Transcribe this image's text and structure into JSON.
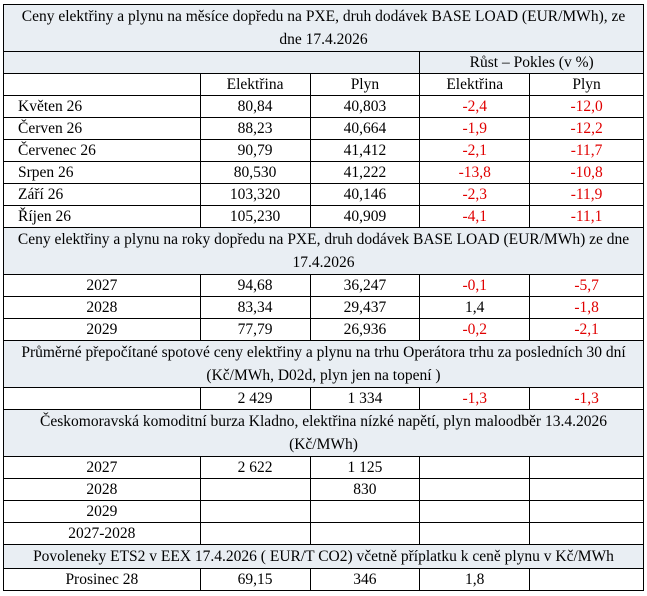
{
  "sections": [
    {
      "title": "Ceny elektřiny a plynu na měsíce dopředu na PXE, druh dodávek BASE LOAD (EUR/MWh), ze dne 17.4.2026",
      "group_header": "Růst – Pokles (v %)",
      "column_headers": [
        "Elektřina",
        "Plyn",
        "Elektřina",
        "Plyn"
      ],
      "rows": [
        [
          "Květen 26",
          "80,84",
          "40,803",
          "-2,4",
          "-12,0"
        ],
        [
          "Červen 26",
          "88,23",
          "40,664",
          "-1,9",
          "-12,2"
        ],
        [
          "Červenec 26",
          "90,79",
          "41,412",
          "-2,1",
          "-11,7"
        ],
        [
          "Srpen 26",
          "80,530",
          "41,222",
          "-13,8",
          "-10,8"
        ],
        [
          "Září 26",
          "103,320",
          "40,146",
          "-2,3",
          "-11,9"
        ],
        [
          "Říjen 26",
          "105,230",
          "40,909",
          "-4,1",
          "-11,1"
        ]
      ]
    },
    {
      "title": "Ceny elektřiny a plynu na roky dopředu na PXE, druh dodávek BASE LOAD (EUR/MWh) ze dne 17.4.2026",
      "rows": [
        [
          "2027",
          "94,68",
          "36,247",
          "-0,1",
          "-5,7"
        ],
        [
          "2028",
          "83,34",
          "29,437",
          "1,4",
          "-1,8"
        ],
        [
          "2029",
          "77,79",
          "26,936",
          "-0,2",
          "-2,1"
        ]
      ]
    },
    {
      "title": "Průměrné přepočítané spotové ceny elektřiny a plynu na trhu Operátora trhu za posledních 30 dní (Kč/MWh, D02d, plyn jen na topení )",
      "rows": [
        [
          null,
          "2 429",
          "1 334",
          "-1,3",
          "-1,3"
        ]
      ]
    },
    {
      "title": "Českomoravská komoditní burza Kladno, elektřina nízké napětí, plyn maloodběr 13.4.2026 (Kč/MWh)",
      "rows": [
        [
          "2027",
          "2 622",
          "1 125",
          null,
          null
        ],
        [
          "2028",
          null,
          "830",
          null,
          null
        ],
        [
          "2029",
          null,
          null,
          null,
          null
        ],
        [
          "2027-2028",
          null,
          null,
          null,
          null
        ]
      ]
    },
    {
      "title": "Povoleneky ETS2 v EEX 17.4.2026  ( EUR/T CO2) včetně příplatku k ceně plynu v Kč/MWh",
      "rows": [
        [
          "Prosinec 28",
          "69,15",
          "346",
          "1,8",
          null
        ]
      ]
    }
  ]
}
